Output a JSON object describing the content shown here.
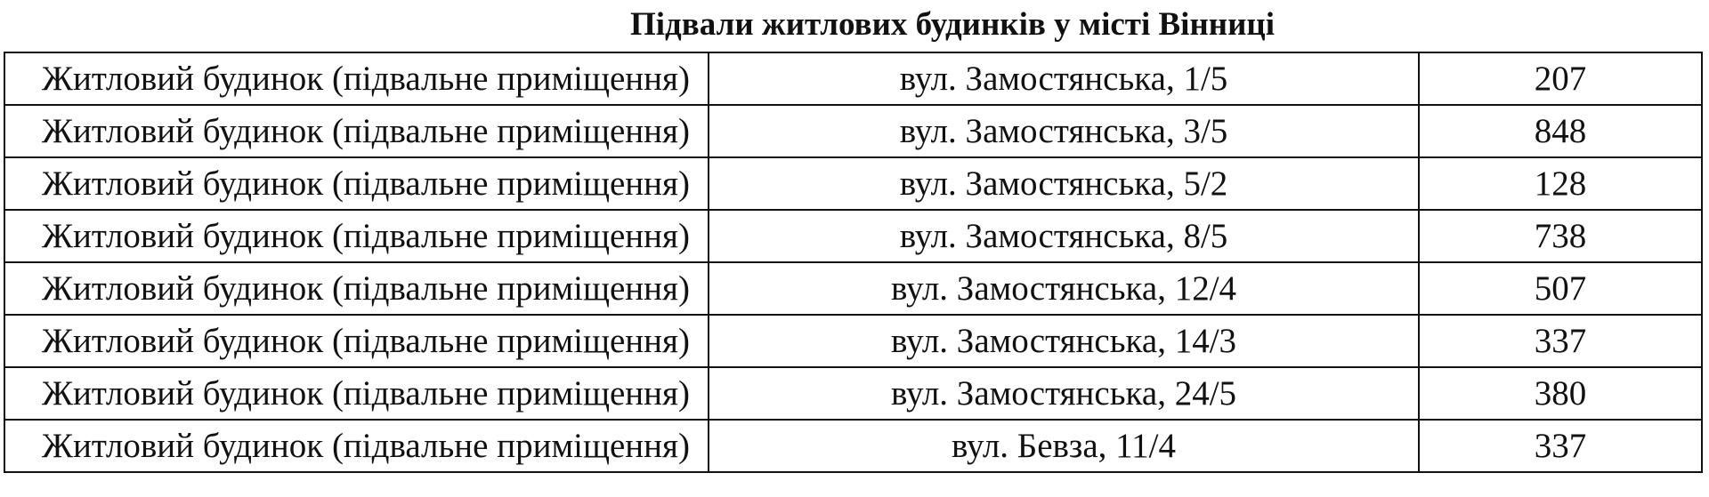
{
  "title": "Підвали житлових будинків у місті Вінниці",
  "rows": [
    {
      "type": "Житловий будинок (підвальне приміщення)",
      "address": "вул. Замостянська, 1/5",
      "value": "207"
    },
    {
      "type": "Житловий будинок (підвальне приміщення)",
      "address": "вул. Замостянська, 3/5",
      "value": "848"
    },
    {
      "type": "Житловий будинок (підвальне приміщення)",
      "address": "вул. Замостянська, 5/2",
      "value": "128"
    },
    {
      "type": "Житловий будинок (підвальне приміщення)",
      "address": "вул. Замостянська, 8/5",
      "value": "738"
    },
    {
      "type": "Житловий будинок (підвальне приміщення)",
      "address": "вул. Замостянська, 12/4",
      "value": "507"
    },
    {
      "type": "Житловий будинок (підвальне приміщення)",
      "address": "вул. Замостянська, 14/3",
      "value": "337"
    },
    {
      "type": "Житловий будинок (підвальне приміщення)",
      "address": "вул. Замостянська, 24/5",
      "value": "380"
    },
    {
      "type": "Житловий будинок (підвальне приміщення)",
      "address": "вул. Бевза, 11/4",
      "value": "337"
    }
  ]
}
